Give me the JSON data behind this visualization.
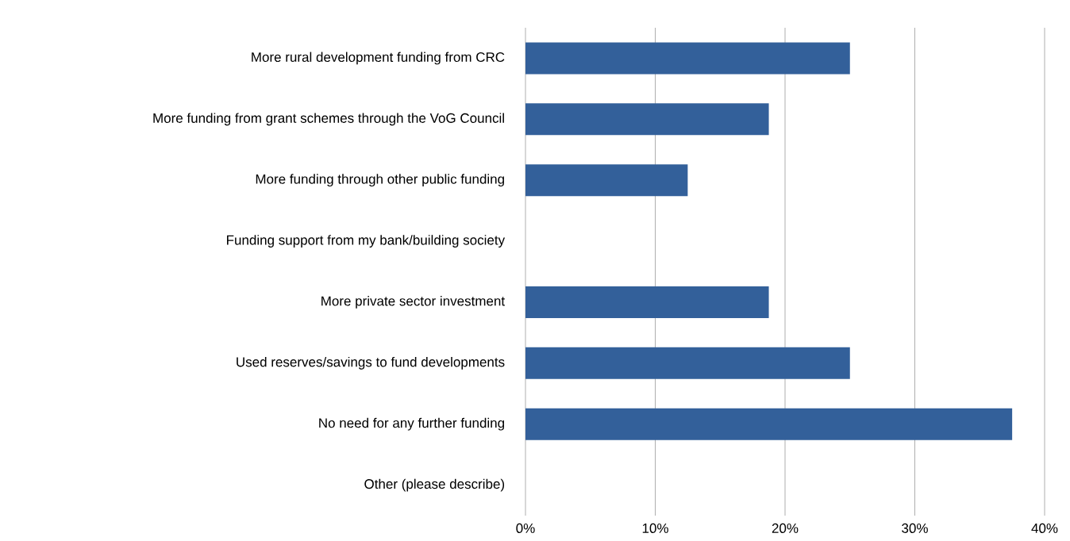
{
  "chart_data": {
    "type": "bar",
    "orientation": "horizontal",
    "categories": [
      "More rural development funding from CRC",
      "More funding from grant schemes through the VoG Council",
      "More funding through other public funding",
      "Funding support from my bank/building society",
      "More private sector investment",
      "Used reserves/savings to fund developments",
      "No need for any further funding",
      "Other (please describe)"
    ],
    "values": [
      25,
      18.75,
      12.5,
      0,
      18.75,
      25,
      37.5,
      0
    ],
    "color": "#33609a",
    "xlim": [
      0,
      40
    ],
    "xticks": [
      {
        "value": 0,
        "label": "0%"
      },
      {
        "value": 10,
        "label": "10%"
      },
      {
        "value": 20,
        "label": "20%"
      },
      {
        "value": 30,
        "label": "30%"
      },
      {
        "value": 40,
        "label": "40%"
      }
    ],
    "grid": "x"
  }
}
